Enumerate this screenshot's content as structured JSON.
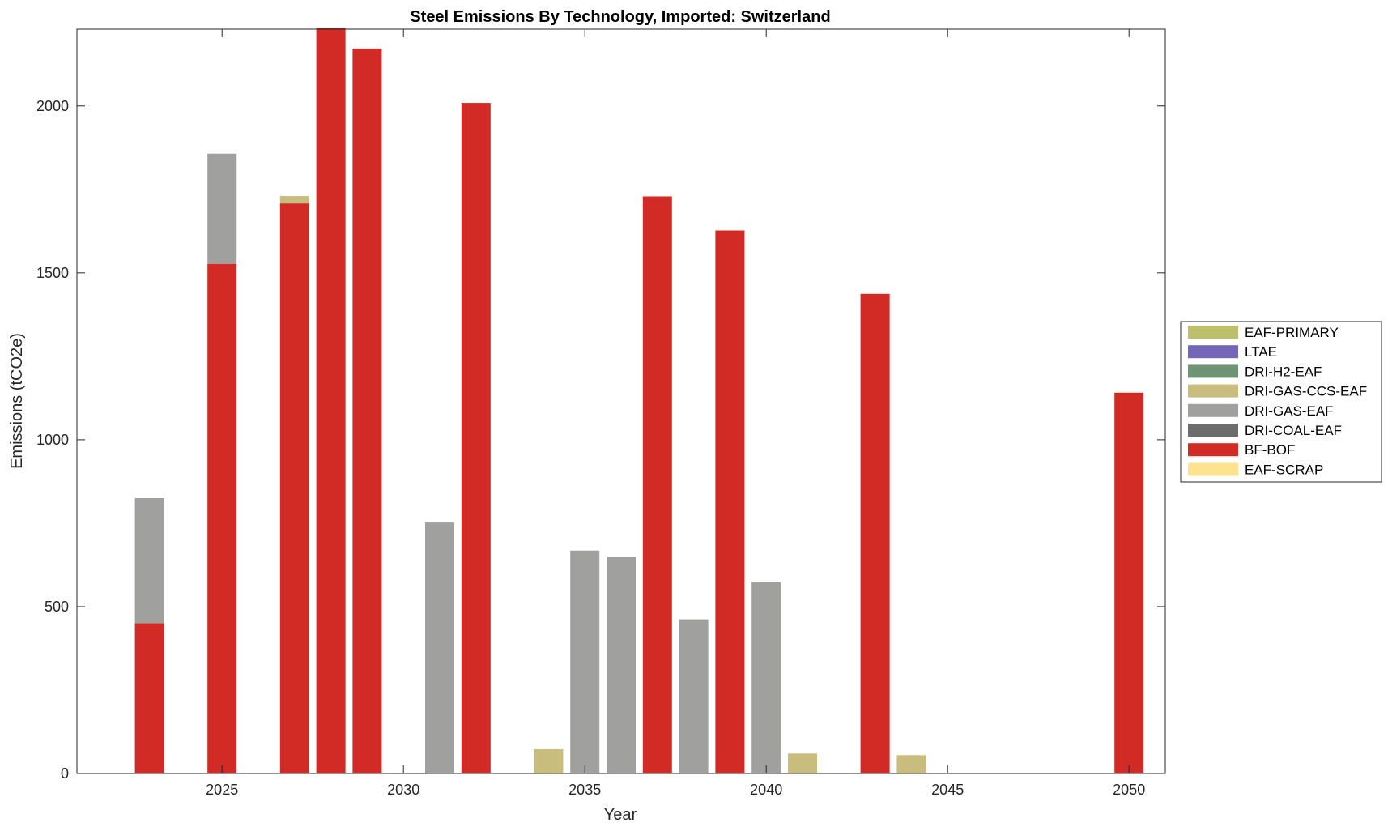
{
  "chart_data": {
    "type": "bar",
    "stacked": true,
    "title": "Steel Emissions By Technology, Imported: Switzerland",
    "xlabel": "Year",
    "ylabel": "Emissions (tCO2e)",
    "xlim": [
      2021,
      2051
    ],
    "ylim": [
      0,
      2230
    ],
    "xticks": [
      2025,
      2030,
      2035,
      2040,
      2045,
      2050
    ],
    "yticks": [
      0,
      500,
      1000,
      1500,
      2000
    ],
    "grid": false,
    "legend_position": "right",
    "x": [
      2023,
      2024,
      2025,
      2026,
      2027,
      2028,
      2029,
      2030,
      2031,
      2032,
      2033,
      2034,
      2035,
      2036,
      2037,
      2038,
      2039,
      2040,
      2041,
      2042,
      2043,
      2044,
      2045,
      2046,
      2047,
      2048,
      2049,
      2050
    ],
    "series": [
      {
        "name": "EAF-PRIMARY",
        "color": "#bdbf6a",
        "values": [
          0,
          0,
          0,
          0,
          0,
          0,
          0,
          0,
          0,
          0,
          0,
          0,
          0,
          0,
          0,
          0,
          0,
          0,
          0,
          0,
          0,
          0,
          0,
          0,
          0,
          0,
          0,
          0
        ]
      },
      {
        "name": "LTAE",
        "color": "#7467b8",
        "values": [
          0,
          0,
          0,
          0,
          0,
          0,
          0,
          0,
          0,
          0,
          0,
          0,
          0,
          0,
          0,
          0,
          0,
          0,
          0,
          0,
          0,
          0,
          0,
          0,
          0,
          0,
          0,
          0
        ]
      },
      {
        "name": "DRI-H2-EAF",
        "color": "#6e9475",
        "values": [
          0,
          0,
          0,
          0,
          0,
          0,
          0,
          0,
          0,
          0,
          0,
          0,
          0,
          0,
          0,
          0,
          0,
          0,
          0,
          0,
          0,
          0,
          0,
          0,
          0,
          0,
          0,
          0
        ]
      },
      {
        "name": "DRI-GAS-CCS-EAF",
        "color": "#c8bd7d",
        "values": [
          0,
          0,
          0,
          0,
          22,
          0,
          0,
          0,
          0,
          0,
          0,
          73,
          0,
          0,
          0,
          0,
          0,
          0,
          60,
          0,
          0,
          55,
          0,
          0,
          0,
          0,
          0,
          0
        ]
      },
      {
        "name": "DRI-GAS-EAF",
        "color": "#a0a09f",
        "values": [
          375,
          0,
          330,
          0,
          0,
          0,
          0,
          0,
          752,
          0,
          0,
          0,
          668,
          648,
          0,
          462,
          0,
          573,
          0,
          0,
          0,
          0,
          0,
          0,
          0,
          0,
          0,
          0
        ]
      },
      {
        "name": "DRI-COAL-EAF",
        "color": "#6c6c6c",
        "values": [
          0,
          0,
          0,
          0,
          0,
          0,
          0,
          0,
          0,
          0,
          0,
          0,
          0,
          0,
          0,
          0,
          0,
          0,
          0,
          0,
          0,
          0,
          0,
          0,
          0,
          0,
          0,
          0
        ]
      },
      {
        "name": "BF-BOF",
        "color": "#d22b26",
        "values": [
          450,
          0,
          1527,
          0,
          1708,
          2233,
          2172,
          0,
          0,
          2009,
          0,
          0,
          0,
          0,
          1729,
          0,
          1627,
          0,
          0,
          0,
          1437,
          0,
          0,
          0,
          0,
          0,
          0,
          1141
        ]
      },
      {
        "name": "EAF-SCRAP",
        "color": "#fde28f",
        "values": [
          0,
          0,
          0,
          0,
          0,
          0,
          0,
          0,
          0,
          0,
          0,
          0,
          0,
          0,
          0,
          0,
          0,
          0,
          0,
          0,
          0,
          0,
          0,
          0,
          0,
          0,
          0,
          0
        ]
      }
    ],
    "stack_order": [
      "BF-BOF",
      "DRI-GAS-EAF",
      "DRI-GAS-CCS-EAF",
      "EAF-PRIMARY",
      "LTAE",
      "DRI-H2-EAF",
      "DRI-COAL-EAF",
      "EAF-SCRAP"
    ],
    "legend_order": [
      "EAF-PRIMARY",
      "LTAE",
      "DRI-H2-EAF",
      "DRI-GAS-CCS-EAF",
      "DRI-GAS-EAF",
      "DRI-COAL-EAF",
      "BF-BOF",
      "EAF-SCRAP"
    ]
  }
}
